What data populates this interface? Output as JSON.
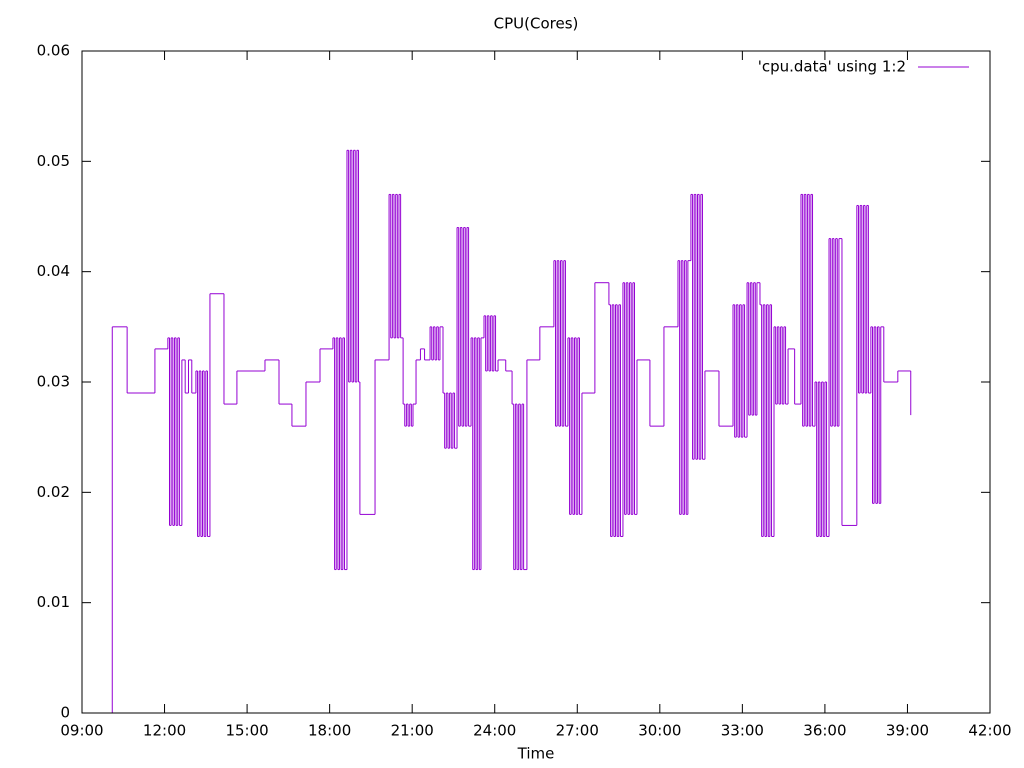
{
  "chart_data": {
    "type": "line",
    "title": "CPU(Cores)",
    "x_label": "Time",
    "xlim": [
      9,
      42
    ],
    "xticks": [
      {
        "value": 9,
        "label": "09:00"
      },
      {
        "value": 12,
        "label": "12:00"
      },
      {
        "value": 15,
        "label": "15:00"
      },
      {
        "value": 18,
        "label": "18:00"
      },
      {
        "value": 21,
        "label": "21:00"
      },
      {
        "value": 24,
        "label": "24:00"
      },
      {
        "value": 27,
        "label": "27:00"
      },
      {
        "value": 30,
        "label": "30:00"
      },
      {
        "value": 33,
        "label": "33:00"
      },
      {
        "value": 36,
        "label": "36:00"
      },
      {
        "value": 39,
        "label": "39:00"
      },
      {
        "value": 42,
        "label": "42:00"
      }
    ],
    "ylim": [
      0,
      0.06
    ],
    "yticks": [
      0,
      0.01,
      0.02,
      0.03,
      0.04,
      0.05,
      0.06
    ],
    "legend": "top-right",
    "step": true,
    "x": [
      10.05,
      10.1,
      10.64,
      11.65,
      12.12,
      12.18,
      12.24,
      12.3,
      12.36,
      12.42,
      12.48,
      12.54,
      12.63,
      12.75,
      12.87,
      12.99,
      13.14,
      13.2,
      13.26,
      13.32,
      13.38,
      13.44,
      13.5,
      13.56,
      13.65,
      14.16,
      14.63,
      15.65,
      16.16,
      16.63,
      17.14,
      17.65,
      18.12,
      18.18,
      18.24,
      18.3,
      18.36,
      18.42,
      18.48,
      18.54,
      18.63,
      18.69,
      18.75,
      18.81,
      18.87,
      18.93,
      18.99,
      19.05,
      19.1,
      19.65,
      20.16,
      20.22,
      20.28,
      20.34,
      20.4,
      20.46,
      20.52,
      20.58,
      20.67,
      20.73,
      20.79,
      20.85,
      20.91,
      20.97,
      21.03,
      21.14,
      21.3,
      21.45,
      21.65,
      21.71,
      21.77,
      21.83,
      21.89,
      21.95,
      22.01,
      22.12,
      22.18,
      22.24,
      22.3,
      22.36,
      22.42,
      22.48,
      22.54,
      22.63,
      22.69,
      22.75,
      22.81,
      22.87,
      22.93,
      22.99,
      23.05,
      23.14,
      23.2,
      23.26,
      23.32,
      23.38,
      23.44,
      23.5,
      23.61,
      23.67,
      23.73,
      23.79,
      23.85,
      23.91,
      23.97,
      24.03,
      24.12,
      24.4,
      24.63,
      24.69,
      24.75,
      24.81,
      24.87,
      24.93,
      24.99,
      25.05,
      25.17,
      25.64,
      26.15,
      26.21,
      26.27,
      26.33,
      26.39,
      26.45,
      26.51,
      26.57,
      26.66,
      26.72,
      26.78,
      26.84,
      26.9,
      26.96,
      27.02,
      27.08,
      27.17,
      27.64,
      28.15,
      28.21,
      28.27,
      28.33,
      28.39,
      28.45,
      28.51,
      28.57,
      28.66,
      28.72,
      28.78,
      28.84,
      28.9,
      28.96,
      29.02,
      29.08,
      29.17,
      29.64,
      30.15,
      30.66,
      30.72,
      30.78,
      30.84,
      30.9,
      30.96,
      31.02,
      31.13,
      31.19,
      31.25,
      31.31,
      31.37,
      31.43,
      31.49,
      31.55,
      31.64,
      32.15,
      32.66,
      32.72,
      32.78,
      32.84,
      32.9,
      32.96,
      33.02,
      33.08,
      33.17,
      33.23,
      33.29,
      33.35,
      33.41,
      33.47,
      33.53,
      33.64,
      33.7,
      33.76,
      33.82,
      33.88,
      33.94,
      34.0,
      34.06,
      34.15,
      34.21,
      34.27,
      34.33,
      34.39,
      34.45,
      34.51,
      34.57,
      34.66,
      34.9,
      35.13,
      35.19,
      35.25,
      35.31,
      35.37,
      35.43,
      35.49,
      35.55,
      35.64,
      35.7,
      35.76,
      35.82,
      35.88,
      35.94,
      36.0,
      36.06,
      36.15,
      36.21,
      36.27,
      36.33,
      36.39,
      36.45,
      36.51,
      36.62,
      37.16,
      37.22,
      37.28,
      37.34,
      37.4,
      37.46,
      37.52,
      37.58,
      37.67,
      37.73,
      37.79,
      37.85,
      37.91,
      37.97,
      38.03,
      38.14,
      38.65,
      39.12
    ],
    "series": [
      {
        "name": "'cpu.data' using 1:2",
        "color": "#9400d3",
        "values": [
          0,
          0.035,
          0.029,
          0.033,
          0.034,
          0.017,
          0.034,
          0.017,
          0.034,
          0.017,
          0.034,
          0.017,
          0.032,
          0.029,
          0.032,
          0.029,
          0.031,
          0.016,
          0.031,
          0.016,
          0.031,
          0.016,
          0.031,
          0.016,
          0.038,
          0.028,
          0.031,
          0.032,
          0.028,
          0.026,
          0.03,
          0.033,
          0.034,
          0.013,
          0.034,
          0.013,
          0.034,
          0.013,
          0.034,
          0.013,
          0.051,
          0.03,
          0.051,
          0.03,
          0.051,
          0.03,
          0.051,
          0.03,
          0.018,
          0.032,
          0.047,
          0.034,
          0.047,
          0.034,
          0.047,
          0.034,
          0.047,
          0.034,
          0.028,
          0.026,
          0.028,
          0.026,
          0.028,
          0.026,
          0.028,
          0.032,
          0.033,
          0.032,
          0.035,
          0.032,
          0.035,
          0.032,
          0.035,
          0.032,
          0.035,
          0.029,
          0.024,
          0.029,
          0.024,
          0.029,
          0.024,
          0.029,
          0.024,
          0.044,
          0.026,
          0.044,
          0.026,
          0.044,
          0.026,
          0.044,
          0.026,
          0.034,
          0.013,
          0.034,
          0.013,
          0.034,
          0.013,
          0.034,
          0.036,
          0.031,
          0.036,
          0.031,
          0.036,
          0.031,
          0.036,
          0.031,
          0.032,
          0.031,
          0.028,
          0.013,
          0.028,
          0.013,
          0.028,
          0.013,
          0.028,
          0.013,
          0.032,
          0.035,
          0.041,
          0.026,
          0.041,
          0.026,
          0.041,
          0.026,
          0.041,
          0.026,
          0.034,
          0.018,
          0.034,
          0.018,
          0.034,
          0.018,
          0.034,
          0.018,
          0.029,
          0.039,
          0.037,
          0.016,
          0.037,
          0.016,
          0.037,
          0.016,
          0.037,
          0.016,
          0.039,
          0.018,
          0.039,
          0.018,
          0.039,
          0.018,
          0.039,
          0.018,
          0.032,
          0.026,
          0.035,
          0.041,
          0.018,
          0.041,
          0.018,
          0.041,
          0.018,
          0.041,
          0.047,
          0.023,
          0.047,
          0.023,
          0.047,
          0.023,
          0.047,
          0.023,
          0.031,
          0.026,
          0.037,
          0.025,
          0.037,
          0.025,
          0.037,
          0.025,
          0.037,
          0.025,
          0.039,
          0.027,
          0.039,
          0.027,
          0.039,
          0.027,
          0.039,
          0.037,
          0.016,
          0.037,
          0.016,
          0.037,
          0.016,
          0.037,
          0.016,
          0.035,
          0.028,
          0.035,
          0.028,
          0.035,
          0.028,
          0.035,
          0.028,
          0.033,
          0.028,
          0.047,
          0.026,
          0.047,
          0.026,
          0.047,
          0.026,
          0.047,
          0.026,
          0.03,
          0.016,
          0.03,
          0.016,
          0.03,
          0.016,
          0.03,
          0.016,
          0.043,
          0.026,
          0.043,
          0.026,
          0.043,
          0.026,
          0.043,
          0.017,
          0.046,
          0.029,
          0.046,
          0.029,
          0.046,
          0.029,
          0.046,
          0.029,
          0.035,
          0.019,
          0.035,
          0.019,
          0.035,
          0.019,
          0.035,
          0.03,
          0.031,
          0.027
        ]
      }
    ]
  }
}
